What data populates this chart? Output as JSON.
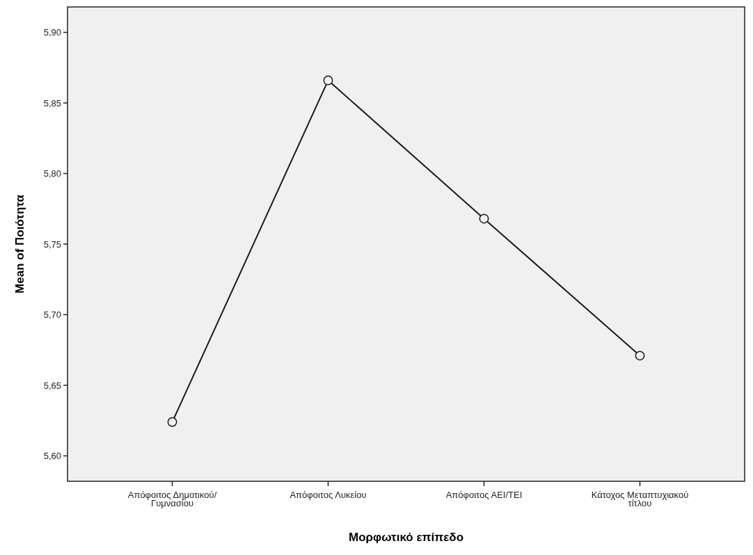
{
  "chart_data": {
    "type": "line",
    "xlabel": "Μορφωτικό επίπεδο",
    "ylabel": "Mean of Ποιότητα",
    "categories": [
      "Απόφοιτος Δημοτικού/Γυμνασίου",
      "Απόφοιτος Λυκείου",
      "Απόφοιτος ΑΕΙ/ΤΕΙ",
      "Κάτοχος Μεταπτυχιακού τίτλου"
    ],
    "series": [
      {
        "color": "#1a1a1a",
        "values": [
          5.624,
          5.866,
          5.768,
          5.671
        ]
      }
    ],
    "ylim": [
      5.582,
      5.918
    ],
    "yticks": [
      {
        "value": 5.6,
        "label": "5,60"
      },
      {
        "value": 5.65,
        "label": "5,65"
      },
      {
        "value": 5.7,
        "label": "5,70"
      },
      {
        "value": 5.75,
        "label": "5,75"
      },
      {
        "value": 5.8,
        "label": "5,80"
      },
      {
        "value": 5.85,
        "label": "5,85"
      },
      {
        "value": 5.9,
        "label": "5,90"
      }
    ],
    "grid": false,
    "marker": "circle",
    "line_style": "solid"
  }
}
